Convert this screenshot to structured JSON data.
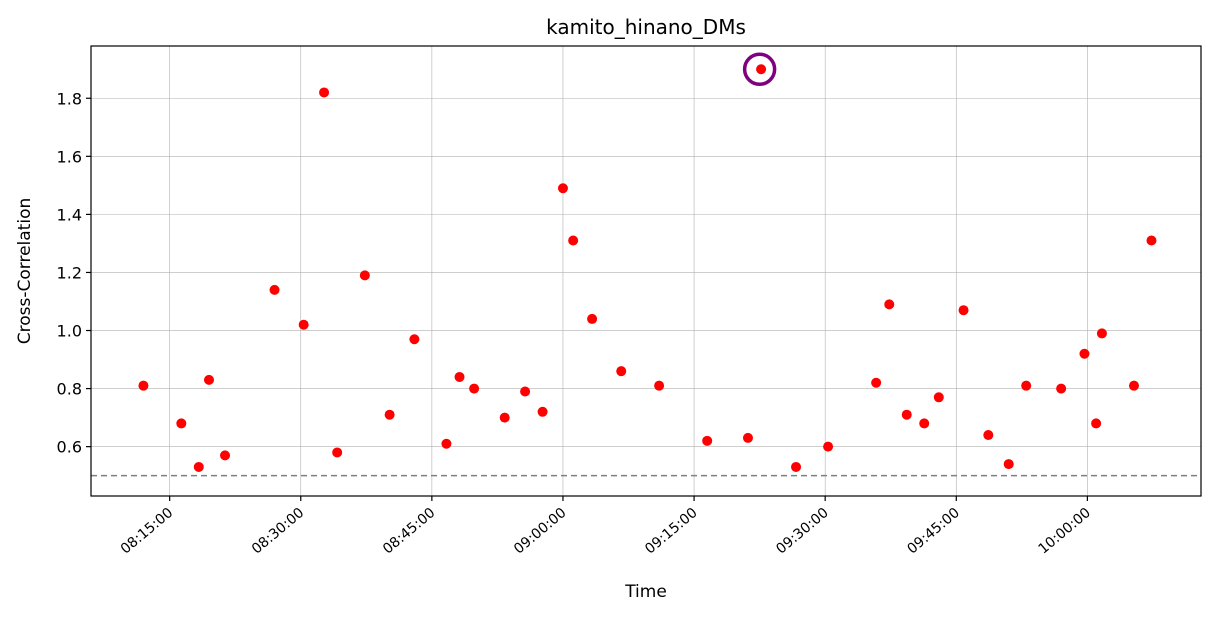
{
  "chart_data": {
    "type": "scatter",
    "title": "kamito_hinano_DMs",
    "xlabel": "Time",
    "ylabel": "Cross-Correlation",
    "x_range": [
      "08:06:00",
      "10:13:00"
    ],
    "ylim": [
      0.43,
      1.98
    ],
    "grid": true,
    "marker_color": "#ff0000",
    "highlight_color": "#800080",
    "threshold": {
      "value": 0.5,
      "color": "#808080",
      "style": "dashed"
    },
    "x_ticks": [
      "08:15:00",
      "08:30:00",
      "08:45:00",
      "09:00:00",
      "09:15:00",
      "09:30:00",
      "09:45:00",
      "10:00:00"
    ],
    "y_ticks": [
      "0.6",
      "0.8",
      "1.0",
      "1.2",
      "1.4",
      "1.6",
      "1.8"
    ],
    "highlight": {
      "x": "09:22:30",
      "y": 1.9
    },
    "points": [
      {
        "x": "08:12:00",
        "y": 0.81
      },
      {
        "x": "08:16:30",
        "y": 0.68
      },
      {
        "x": "08:12:30",
        "y": 0.81
      },
      {
        "x": "08:16:30",
        "y": 0.68
      },
      {
        "x": "08:16:30",
        "y": 0.68
      },
      {
        "x": "08:12:00",
        "y": 0.81
      }
    ],
    "series": [
      {
        "x": [
          "08:12:00",
          "08:16:20",
          "08:18:20",
          "08:19:30",
          "08:21:20",
          "08:27:00",
          "08:30:20",
          "08:32:40",
          "08:34:10",
          "08:37:20",
          "08:40:10",
          "08:43:00",
          "08:46:40",
          "08:48:10",
          "08:49:50",
          "08:53:20",
          "08:55:40",
          "08:57:40",
          "09:00:00",
          "09:01:10",
          "09:03:20",
          "09:06:40",
          "09:11:00",
          "09:16:30",
          "09:21:10",
          "09:22:40",
          "09:26:40",
          "09:30:20",
          "09:35:50",
          "09:37:20",
          "09:39:20",
          "09:41:20",
          "09:43:00",
          "09:45:50",
          "09:48:40",
          "09:51:00",
          "09:53:00",
          "09:57:00",
          "09:59:40",
          "10:01:00",
          "10:01:40",
          "10:05:20",
          "10:07:20"
        ],
        "y": [
          0.81,
          0.68,
          0.53,
          0.83,
          0.57,
          1.14,
          1.02,
          1.82,
          0.58,
          1.19,
          0.71,
          0.97,
          0.61,
          0.84,
          0.8,
          0.7,
          0.79,
          0.72,
          1.49,
          1.31,
          1.04,
          0.86,
          0.81,
          0.62,
          0.63,
          1.9,
          0.53,
          0.6,
          0.82,
          1.09,
          0.71,
          0.68,
          0.77,
          1.07,
          0.64,
          0.54,
          0.81,
          0.8,
          0.92,
          0.68,
          0.99,
          0.81,
          1.31
        ]
      }
    ]
  }
}
